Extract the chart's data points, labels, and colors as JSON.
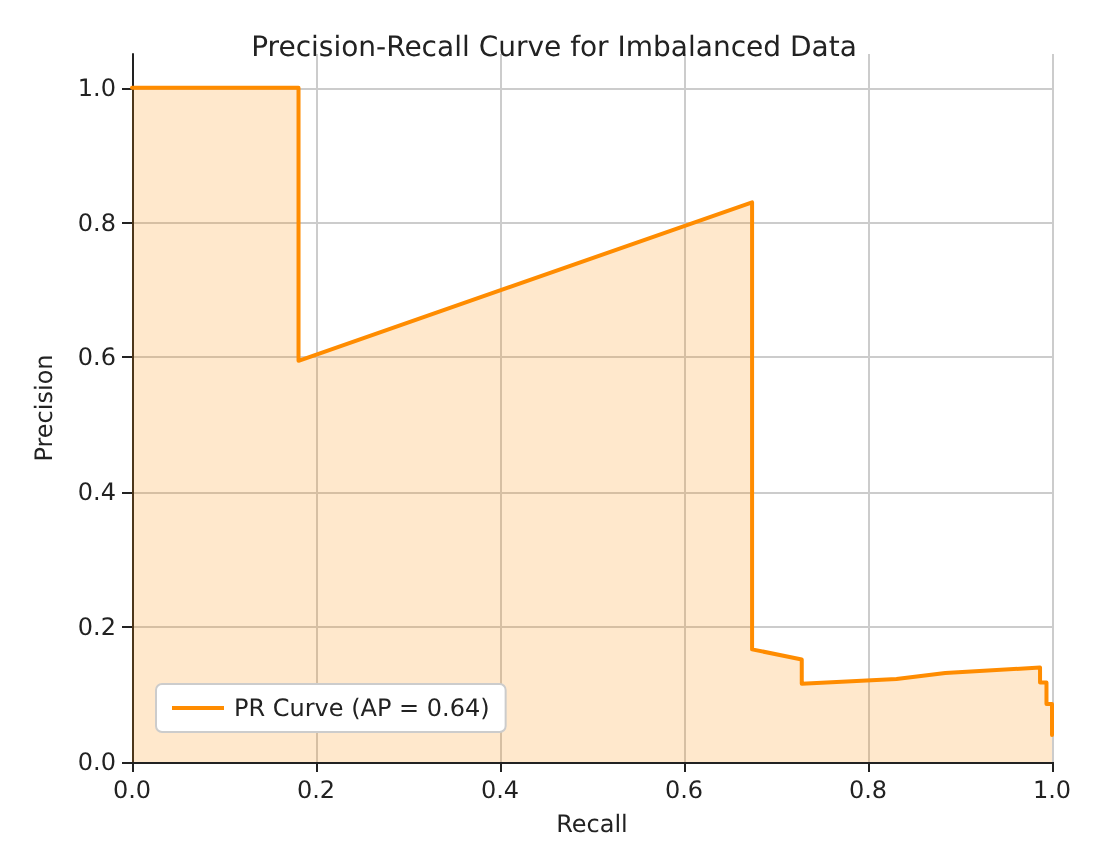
{
  "chart_data": {
    "type": "area",
    "title": "Precision-Recall Curve for Imbalanced Data",
    "xlabel": "Recall",
    "ylabel": "Precision",
    "x": [
      0,
      0.181,
      0.181,
      0.674,
      0.674,
      0.728,
      0.728,
      0.831,
      0.831,
      0.884,
      0.987,
      0.987,
      0.994,
      0.994,
      1.0,
      1.0
    ],
    "series": [
      {
        "name": "PR Curve (AP = 0.64)",
        "color": "#ff8c00",
        "values": [
          1.0,
          1.0,
          0.595,
          0.83,
          0.167,
          0.152,
          0.116,
          0.123,
          0.121,
          0.132,
          0.14,
          0.118,
          0.118,
          0.086,
          0.086,
          0.04
        ]
      }
    ],
    "xlim": [
      0,
      1
    ],
    "xticks": [
      {
        "value": 0,
        "label": "0.0"
      },
      0.2,
      0.4,
      0.6,
      0.8,
      {
        "value": 1,
        "label": "1.0"
      }
    ],
    "ylim": [
      0,
      1.05
    ],
    "yticks": [
      {
        "value": 0,
        "label": "0.0"
      },
      0.2,
      0.4,
      0.6,
      0.8,
      {
        "value": 1,
        "label": "1.0"
      }
    ],
    "grid": true,
    "legend": "bottom left",
    "line_style": "solid",
    "marker": "none"
  }
}
